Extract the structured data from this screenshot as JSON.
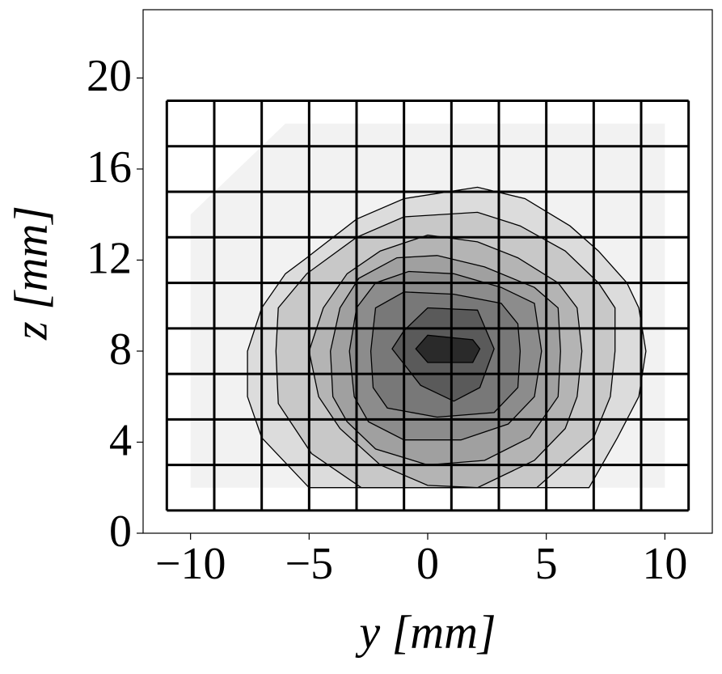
{
  "chart_data": {
    "type": "contour",
    "xlabel": "y [mm]",
    "ylabel": "z [mm]",
    "xlim": [
      -12,
      12
    ],
    "ylim": [
      0,
      23
    ],
    "xticks": [
      {
        "value": -10,
        "label": "−10"
      },
      {
        "value": -5,
        "label": "−5"
      },
      0,
      5,
      10
    ],
    "yticks": [
      0,
      4,
      8,
      12,
      16,
      20
    ],
    "line_color": "#000000",
    "contours": [
      {
        "color": "#f2f2f2",
        "x": [
          -10,
          10,
          10,
          -6,
          -10
        ],
        "y": [
          2,
          2,
          18,
          18,
          14
        ]
      },
      {
        "color": "#dcdcdc",
        "x": [
          -5.0,
          -7.0,
          -7.6,
          -7.6,
          -7.0,
          -6.0,
          -5.1,
          -3.0,
          -1.0,
          2.1,
          4.1,
          6.0,
          7.2,
          8.4,
          8.9,
          9.2,
          8.9,
          8.0,
          6.8
        ],
        "y": [
          2.0,
          4.2,
          6.0,
          8.0,
          9.9,
          11.4,
          12.1,
          13.8,
          14.7,
          15.2,
          14.7,
          13.5,
          12.4,
          11.0,
          9.9,
          8.0,
          6.0,
          4.2,
          2.0
        ]
      },
      {
        "color": "#c8c8c8",
        "x": [
          -2.8,
          -4.9,
          -6.3,
          -6.4,
          -6.3,
          -5.1,
          -3.0,
          -1.0,
          2.1,
          3.9,
          5.8,
          7.2,
          7.9,
          7.9,
          7.7,
          7.0,
          4.6
        ],
        "y": [
          2.0,
          3.5,
          5.7,
          8.0,
          9.9,
          11.4,
          13.0,
          13.9,
          14.1,
          13.5,
          12.4,
          11.0,
          9.9,
          8.0,
          6.0,
          4.2,
          2.0
        ]
      },
      {
        "color": "#b4b4b4",
        "x": [
          -5.0,
          -4.4,
          -3.4,
          -2.0,
          0.0,
          2.1,
          3.8,
          5.5,
          6.3,
          6.5,
          6.3,
          5.8,
          4.5,
          2.1,
          0.0,
          -2.0,
          -3.7,
          -4.6
        ],
        "y": [
          8.0,
          9.9,
          11.4,
          12.4,
          13.1,
          12.8,
          12.1,
          11.0,
          9.9,
          8.0,
          6.0,
          4.6,
          3.2,
          2.0,
          2.1,
          3.0,
          4.6,
          6.0
        ]
      },
      {
        "color": "#a0a0a0",
        "x": [
          -4.1,
          -3.7,
          -2.9,
          -1.3,
          0.4,
          2.4,
          4.5,
          5.5,
          5.6,
          5.5,
          4.3,
          2.4,
          0.0,
          -2.2,
          -3.4,
          -4.0
        ],
        "y": [
          8.0,
          9.9,
          11.2,
          12.1,
          12.2,
          11.7,
          10.8,
          9.9,
          8.0,
          6.0,
          4.2,
          3.2,
          3.0,
          3.7,
          4.9,
          6.0
        ]
      },
      {
        "color": "#8c8c8c",
        "x": [
          -3.3,
          -3.0,
          -2.2,
          -0.8,
          1.1,
          3.1,
          4.5,
          4.8,
          4.5,
          3.4,
          1.4,
          -1.0,
          -2.5,
          -3.1
        ],
        "y": [
          8.0,
          9.9,
          11.0,
          11.5,
          11.4,
          10.8,
          10.1,
          8.0,
          6.0,
          4.8,
          4.1,
          4.1,
          4.9,
          6.0
        ]
      },
      {
        "color": "#787878",
        "x": [
          -2.4,
          -2.2,
          -1.0,
          1.1,
          3.1,
          3.8,
          3.9,
          3.8,
          2.8,
          0.4,
          -1.7,
          -2.3
        ],
        "y": [
          8.0,
          9.9,
          10.6,
          10.5,
          10.1,
          9.2,
          8.0,
          6.4,
          5.3,
          5.1,
          5.5,
          6.4
        ]
      },
      {
        "color": "#5a5a5a",
        "x": [
          -1.5,
          -1.0,
          0.0,
          2.1,
          2.8,
          2.2,
          1.1,
          -0.3
        ],
        "y": [
          8.1,
          8.9,
          9.9,
          9.8,
          8.1,
          6.4,
          5.8,
          6.5
        ]
      },
      {
        "color": "#2a2a2a",
        "x": [
          -0.5,
          0.0,
          1.9,
          2.2,
          1.9,
          0.0
        ],
        "y": [
          8.1,
          8.7,
          8.5,
          8.1,
          7.5,
          7.5
        ]
      }
    ],
    "mesh": {
      "x": [
        -11,
        -9,
        -7,
        -5,
        -3,
        -1,
        1,
        3,
        5,
        7,
        9,
        11
      ],
      "y": [
        1,
        3,
        5,
        7,
        9,
        11,
        13,
        15,
        17,
        19
      ],
      "color": "#000000"
    }
  }
}
